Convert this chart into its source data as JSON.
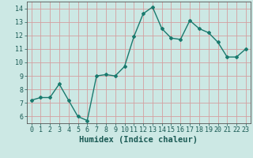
{
  "x": [
    0,
    1,
    2,
    3,
    4,
    5,
    6,
    7,
    8,
    9,
    10,
    11,
    12,
    13,
    14,
    15,
    16,
    17,
    18,
    19,
    20,
    21,
    22,
    23
  ],
  "y": [
    7.2,
    7.4,
    7.4,
    8.4,
    7.2,
    6.0,
    5.7,
    9.0,
    9.1,
    9.0,
    9.7,
    11.9,
    13.6,
    14.1,
    12.5,
    11.8,
    11.7,
    13.1,
    12.5,
    12.2,
    11.5,
    10.4,
    10.4,
    11.0
  ],
  "line_color": "#1a7a6e",
  "marker": "D",
  "marker_size": 2.0,
  "line_width": 1.0,
  "xlabel": "Humidex (Indice chaleur)",
  "xlim": [
    -0.5,
    23.5
  ],
  "ylim": [
    5.5,
    14.5
  ],
  "yticks": [
    6,
    7,
    8,
    9,
    10,
    11,
    12,
    13,
    14
  ],
  "xticks": [
    0,
    1,
    2,
    3,
    4,
    5,
    6,
    7,
    8,
    9,
    10,
    11,
    12,
    13,
    14,
    15,
    16,
    17,
    18,
    19,
    20,
    21,
    22,
    23
  ],
  "grid_color": "#d4a0a0",
  "bg_color": "#cce8e4",
  "xlabel_fontsize": 7.5,
  "tick_fontsize": 6.0
}
